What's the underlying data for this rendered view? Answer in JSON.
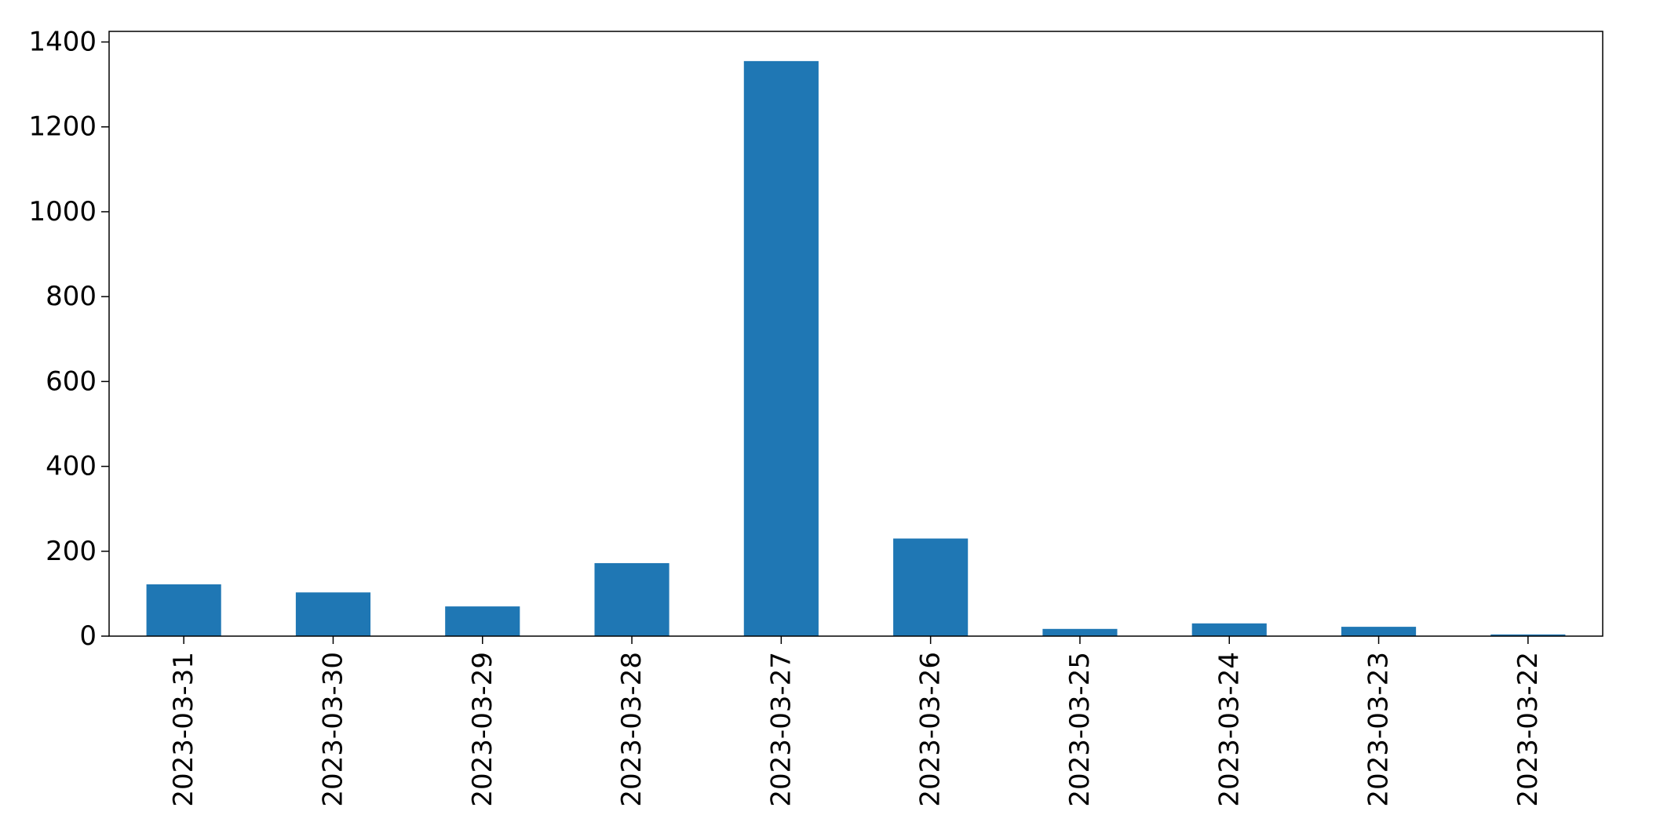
{
  "chart_data": {
    "type": "bar",
    "categories": [
      "2023-03-31",
      "2023-03-30",
      "2023-03-29",
      "2023-03-28",
      "2023-03-27",
      "2023-03-26",
      "2023-03-25",
      "2023-03-24",
      "2023-03-23",
      "2023-03-22"
    ],
    "values": [
      122,
      103,
      70,
      172,
      1355,
      230,
      17,
      30,
      22,
      4
    ],
    "ylim": [
      0,
      1425
    ],
    "yticks": [
      0,
      200,
      400,
      600,
      800,
      1000,
      1200,
      1400
    ],
    "title": "",
    "xlabel": "",
    "ylabel": "",
    "grid": false,
    "bar_color": "#1f77b4"
  }
}
